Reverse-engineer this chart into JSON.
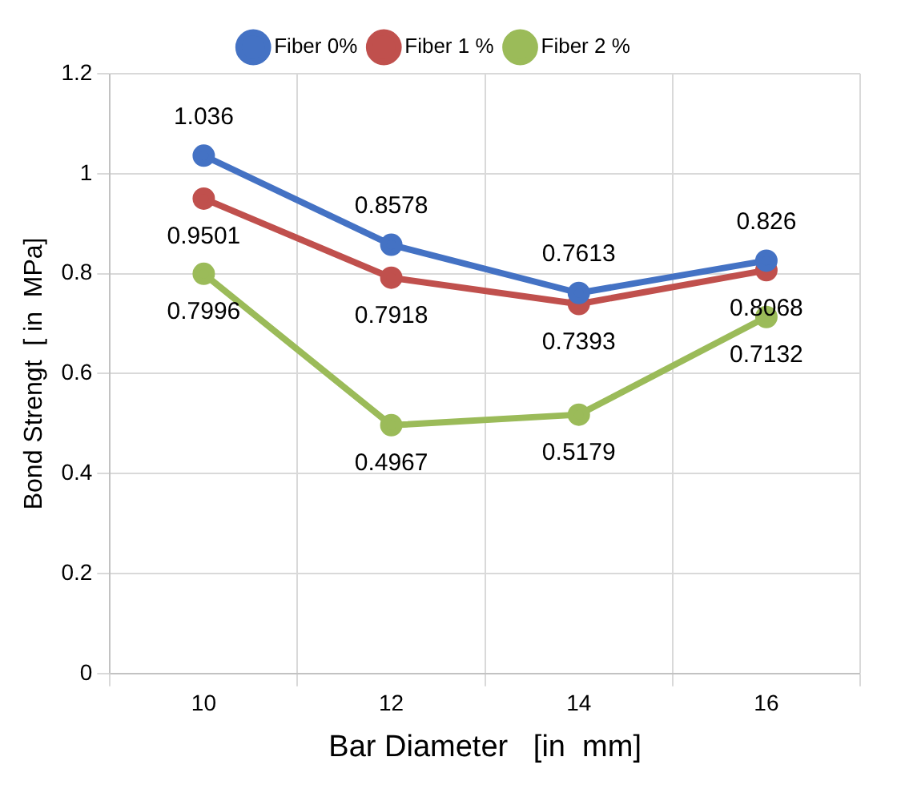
{
  "chart_data": {
    "type": "line",
    "xlabel": "Bar Diameter   [in  mm]",
    "ylabel": "Bond Strengt  [ in  MPa]",
    "categories": [
      "10",
      "12",
      "14",
      "16"
    ],
    "series": [
      {
        "name": "Fiber 0%",
        "color": "#4472c4",
        "values": [
          1.036,
          0.8578,
          0.7613,
          0.826
        ]
      },
      {
        "name": "Fiber 1 %",
        "color": "#c0504d",
        "values": [
          0.9501,
          0.7918,
          0.7393,
          0.8068
        ]
      },
      {
        "name": "Fiber 2 %",
        "color": "#9bbb59",
        "values": [
          0.7996,
          0.4967,
          0.5179,
          0.7132
        ]
      }
    ],
    "ylim": [
      0,
      1.2
    ],
    "yticks": [
      0,
      0.2,
      0.4,
      0.6,
      0.8,
      1,
      1.2
    ],
    "grid": true,
    "legend": "top",
    "marker": "circle",
    "line_style": "solid",
    "data_labels": true
  }
}
